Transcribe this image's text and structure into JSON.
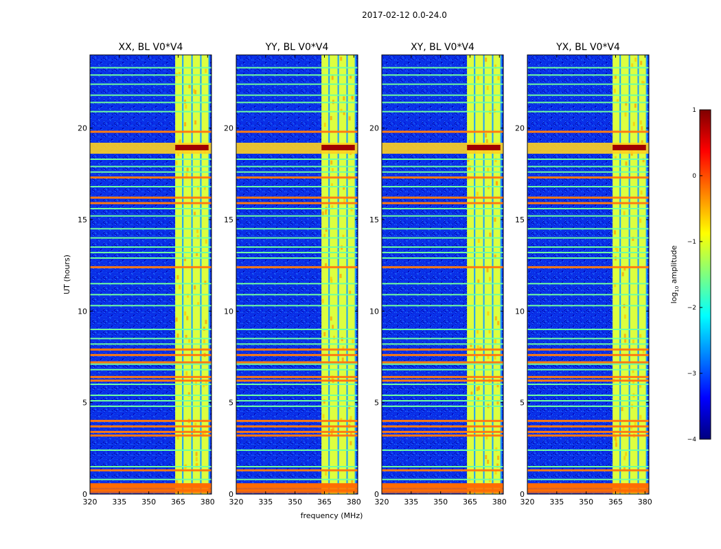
{
  "chart_data": {
    "type": "heatmap",
    "title": "2017-02-12 0.0-24.0",
    "xlabel": "frequency (MHz)",
    "ylabel": "UT (hours)",
    "xlim": [
      320,
      382
    ],
    "ylim": [
      0,
      24
    ],
    "xticks": [
      320,
      335,
      350,
      365,
      380
    ],
    "yticks": [
      0,
      5,
      10,
      15,
      20
    ],
    "panels": [
      {
        "title": "XX, BL V0*V4"
      },
      {
        "title": "YY, BL V0*V4"
      },
      {
        "title": "XY, BL V0*V4"
      },
      {
        "title": "YX, BL V0*V4"
      }
    ],
    "band": {
      "start_mhz": 363.5,
      "end_mhz": 380.5,
      "sub_bands": [
        [
          363.5,
          367.0
        ],
        [
          367.8,
          371.7
        ],
        [
          372.5,
          376.2
        ],
        [
          377.0,
          380.5
        ]
      ]
    },
    "rfi_hours_strong": [
      0.2,
      0.4,
      0.5,
      1.3,
      3.2,
      3.4,
      3.7,
      4.0,
      6.2,
      6.4,
      7.2,
      7.6,
      7.9,
      12.4,
      15.9,
      16.2,
      17.3,
      19.8
    ],
    "rfi_hours_weak": [
      0.8,
      1.5,
      2.4,
      4.8,
      5.1,
      5.4,
      6.0,
      6.8,
      7.1,
      8.2,
      8.5,
      9.0,
      10.3,
      10.9,
      11.5,
      12.9,
      13.2,
      13.5,
      14.0,
      14.5,
      15.2,
      15.6,
      16.8,
      17.6,
      17.9,
      18.3,
      20.9,
      21.4,
      21.8,
      22.4,
      22.9,
      23.3
    ],
    "burst_hours": [
      18.6,
      19.2
    ],
    "colorbar": {
      "label": "log10 amplitude",
      "label_base": "log",
      "label_sub": "10",
      "label_rest": " amplitude",
      "range": [
        -4,
        1
      ],
      "ticks": [
        "1",
        "0",
        "−1",
        "−2",
        "−3",
        "−4"
      ],
      "colors": [
        "#00007f",
        "#0000ff",
        "#007fff",
        "#00ffff",
        "#7fff7f",
        "#ffff00",
        "#ff7f00",
        "#ff0000",
        "#7f0000"
      ]
    }
  }
}
